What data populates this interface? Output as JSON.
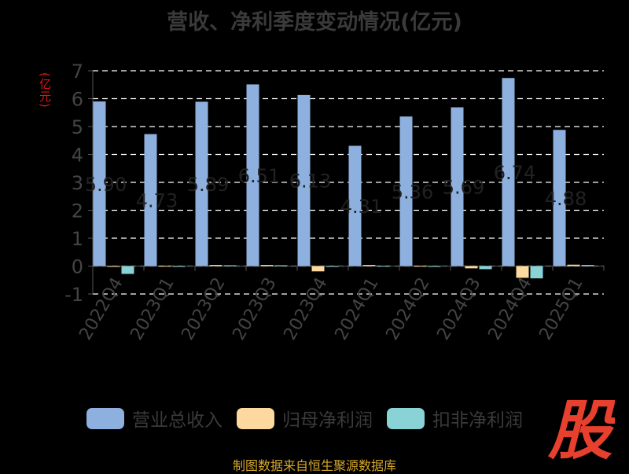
{
  "title": "营收、净利季度变动情况(亿元)",
  "y_unit": "(亿元)",
  "source": "制图数据来自恒生聚源数据库",
  "logo_char": "股",
  "colors": {
    "revenue": "#8eb0de",
    "net": "#fdd9a0",
    "deducted": "#89d3d7",
    "logo": "#e8402e",
    "grid": "#ffffff",
    "axis_text": "#444444"
  },
  "chart_data": {
    "type": "bar",
    "title": "营收、净利季度变动情况(亿元)",
    "ylabel": "(亿元)",
    "ylim": [
      -1,
      7
    ],
    "yticks": [
      -1,
      0,
      1,
      2,
      3,
      4,
      5,
      6,
      7
    ],
    "categories": [
      "2022Q4",
      "2023Q1",
      "2023Q2",
      "2023Q3",
      "2023Q4",
      "2024Q1",
      "2024Q2",
      "2024Q3",
      "2024Q4",
      "2025Q1"
    ],
    "series": [
      {
        "name": "营业总收入",
        "values": [
          5.9,
          4.73,
          5.89,
          6.51,
          6.13,
          4.31,
          5.36,
          5.69,
          6.74,
          4.88
        ]
      },
      {
        "name": "归母净利润",
        "values": [
          -0.01,
          0.01,
          0.04,
          0.04,
          -0.19,
          0.04,
          0.01,
          -0.08,
          -0.42,
          0.05
        ]
      },
      {
        "name": "扣非净利润",
        "values": [
          -0.28,
          -0.02,
          0.03,
          0.03,
          -0.01,
          0.01,
          -0.02,
          -0.11,
          -0.44,
          0.04
        ]
      }
    ],
    "data_labels": [
      "5.90",
      "4.73",
      "5.89",
      "6.51",
      "6.13",
      "4.31",
      "5.36",
      "5.69",
      "6.74",
      "4.88"
    ],
    "grid": true,
    "legend_position": "bottom"
  }
}
